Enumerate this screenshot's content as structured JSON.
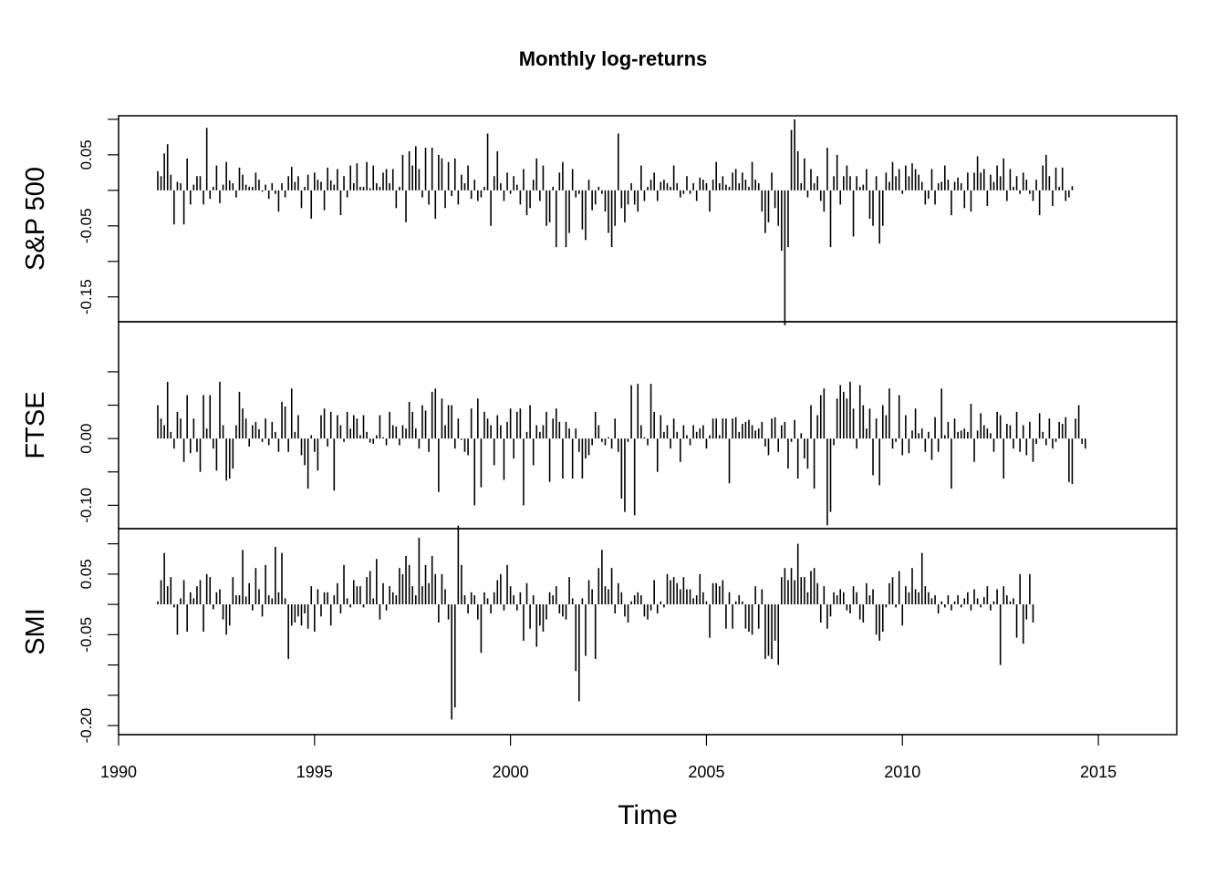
{
  "chart_data": {
    "type": "line",
    "style": "histogram-type vertical bars (type='h')",
    "title": "Monthly log-returns",
    "xlabel": "Time",
    "x_start": 1991.0,
    "frequency": 12,
    "xlim": [
      1990,
      2017
    ],
    "x_ticks": [
      1990,
      1995,
      2000,
      2005,
      2010,
      2015
    ],
    "x_tick_labels": [
      "1990",
      "1995",
      "2000",
      "2005",
      "2010",
      "2015"
    ],
    "panels": [
      {
        "name": "S&P 500",
        "ylim": [
          -0.185,
          0.105
        ],
        "y_ticks": [
          0.1,
          0.05,
          0.0,
          -0.05,
          -0.1,
          -0.15,
          -0.2
        ],
        "y_tick_labels": [
          {
            "at": 0.05,
            "text": "0.05"
          },
          {
            "at": -0.05,
            "text": "-0.05"
          },
          {
            "at": -0.15,
            "text": "-0.15"
          }
        ],
        "values": [
          0.027,
          0.02,
          0.052,
          0.065,
          0.022,
          -0.048,
          0.012,
          0.01,
          -0.048,
          0.045,
          -0.02,
          0.008,
          0.02,
          0.02,
          -0.02,
          0.088,
          -0.012,
          0.005,
          0.035,
          -0.018,
          0.008,
          0.04,
          0.014,
          0.01,
          -0.01,
          0.032,
          0.022,
          0.008,
          0.005,
          0.005,
          0.025,
          0.015,
          -0.002,
          0.008,
          -0.012,
          0.01,
          -0.005,
          -0.03,
          0.01,
          -0.01,
          0.02,
          0.033,
          0.012,
          0.02,
          -0.025,
          0.005,
          0.022,
          -0.04,
          0.025,
          0.015,
          0.012,
          -0.028,
          0.032,
          0.014,
          0.008,
          0.03,
          -0.035,
          0.02,
          -0.01,
          0.035,
          0.01,
          0.038,
          0.005,
          0.005,
          0.04,
          0.003,
          0.035,
          0.01,
          0.005,
          0.025,
          0.03,
          0.01,
          0.03,
          -0.025,
          0.005,
          0.05,
          -0.045,
          0.055,
          0.035,
          0.062,
          0.03,
          -0.01,
          0.06,
          -0.02,
          0.06,
          -0.04,
          0.05,
          0.045,
          -0.025,
          0.04,
          -0.008,
          0.045,
          -0.02,
          0.022,
          0.01,
          0.035,
          -0.012,
          0.015,
          -0.015,
          -0.01,
          0.005,
          0.08,
          -0.05,
          0.02,
          0.055,
          0.01,
          -0.015,
          0.025,
          -0.005,
          0.02,
          0.008,
          -0.02,
          0.03,
          -0.035,
          -0.025,
          0.015,
          0.045,
          -0.015,
          0.035,
          -0.05,
          -0.045,
          0.005,
          -0.08,
          0.025,
          0.04,
          -0.08,
          -0.06,
          0.03,
          -0.01,
          -0.005,
          -0.055,
          -0.07,
          0.015,
          -0.028,
          -0.02,
          0.005,
          -0.005,
          -0.03,
          -0.06,
          -0.08,
          -0.05,
          0.08,
          -0.025,
          -0.045,
          -0.02,
          0.01,
          -0.02,
          -0.03,
          0.035,
          -0.015,
          0.005,
          0.015,
          0.025,
          -0.015,
          0.012,
          0.015,
          0.01,
          0.005,
          0.035,
          0.01,
          -0.01,
          -0.005,
          0.02,
          -0.005,
          0.01,
          -0.015,
          0.018,
          0.015,
          0.01,
          -0.03,
          0.015,
          0.04,
          0.01,
          0.02,
          0.008,
          0.005,
          0.025,
          0.03,
          0.01,
          0.025,
          0.015,
          0.005,
          0.04,
          0.015,
          0.01,
          -0.03,
          -0.06,
          -0.045,
          0.025,
          -0.025,
          -0.05,
          -0.085,
          -0.19,
          -0.08,
          0.085,
          0.1,
          0.055,
          0.01,
          0.045,
          -0.01,
          0.03,
          0.01,
          0.02,
          -0.015,
          -0.03,
          0.06,
          -0.08,
          0.02,
          0.05,
          -0.02,
          0.02,
          0.035,
          0.02,
          -0.065,
          0.02,
          0.005,
          0.008,
          0.03,
          -0.04,
          -0.05,
          0.02,
          -0.075,
          -0.05,
          0.025,
          0.012,
          0.04,
          0.02,
          0.03,
          -0.005,
          0.035,
          0.02,
          0.038,
          0.03,
          0.022,
          0.012,
          -0.02,
          -0.012,
          0.03,
          -0.02,
          0.01,
          0.012,
          0.035,
          0.015,
          -0.035,
          0.012,
          0.018,
          0.01,
          -0.025,
          0.025,
          -0.03,
          0.025,
          0.048,
          0.025,
          0.03,
          -0.022,
          0.022,
          0.012,
          0.035,
          0.02,
          0.045,
          -0.015,
          0.03,
          0.005,
          0.02,
          -0.005,
          0.025,
          0.015,
          -0.005,
          -0.015,
          0.015,
          -0.035,
          0.035,
          0.05,
          0.02,
          -0.022,
          0.032,
          0.005,
          0.032,
          -0.015,
          -0.01,
          0.006
        ],
        "series_color": "#000000"
      },
      {
        "name": "FTSE",
        "ylim": [
          -0.135,
          0.175
        ],
        "y_ticks": [
          0.1,
          0.05,
          0.0,
          -0.05,
          -0.1
        ],
        "y_tick_labels": [
          {
            "at": 0.0,
            "text": "0.00"
          },
          {
            "at": -0.1,
            "text": "-0.10"
          }
        ],
        "values": [
          0.05,
          0.03,
          0.02,
          0.085,
          0.01,
          -0.015,
          0.04,
          0.03,
          -0.035,
          0.065,
          -0.022,
          0.03,
          -0.02,
          -0.05,
          0.065,
          0.015,
          0.065,
          -0.015,
          -0.048,
          0.085,
          0.02,
          -0.063,
          -0.06,
          -0.045,
          0.02,
          0.07,
          0.045,
          0.03,
          -0.012,
          0.02,
          0.025,
          0.014,
          -0.005,
          0.03,
          -0.01,
          0.025,
          0.01,
          -0.02,
          0.055,
          0.048,
          -0.02,
          0.075,
          0.01,
          0.035,
          -0.025,
          -0.04,
          -0.075,
          0.005,
          -0.02,
          -0.048,
          0.035,
          0.045,
          -0.012,
          0.04,
          -0.078,
          0.035,
          0.02,
          -0.005,
          0.04,
          0.015,
          0.035,
          0.03,
          0.005,
          0.035,
          0.01,
          -0.006,
          -0.008,
          0.005,
          0.035,
          0.002,
          -0.01,
          0.04,
          0.02,
          0.018,
          -0.01,
          0.02,
          0.015,
          0.055,
          0.04,
          0.015,
          -0.015,
          0.05,
          0.042,
          -0.02,
          0.07,
          0.075,
          -0.08,
          0.06,
          0.02,
          0.05,
          0.05,
          -0.015,
          0.03,
          -0.002,
          -0.02,
          -0.025,
          0.045,
          -0.1,
          0.06,
          -0.073,
          0.04,
          0.03,
          0.02,
          -0.04,
          0.035,
          0.02,
          -0.062,
          0.025,
          0.045,
          -0.03,
          0.04,
          0.045,
          -0.1,
          0.01,
          0.05,
          -0.04,
          0.02,
          0.01,
          0.02,
          0.04,
          -0.065,
          0.03,
          0.045,
          0.025,
          -0.06,
          0.025,
          0.015,
          -0.06,
          0.015,
          -0.02,
          -0.06,
          -0.03,
          -0.025,
          -0.01,
          0.04,
          0.02,
          -0.005,
          -0.01,
          0.002,
          -0.015,
          0.03,
          -0.02,
          -0.09,
          -0.11,
          -0.005,
          0.08,
          -0.115,
          0.082,
          0.02,
          0.002,
          -0.01,
          0.082,
          0.04,
          -0.05,
          0.035,
          0.01,
          0.02,
          -0.015,
          0.03,
          0.01,
          -0.035,
          0.02,
          0.005,
          -0.01,
          0.02,
          0.01,
          0.015,
          0.02,
          -0.015,
          0.005,
          0.03,
          0.03,
          0.005,
          0.03,
          0.03,
          -0.067,
          0.03,
          0.032,
          0.01,
          0.022,
          0.025,
          0.028,
          0.02,
          0.012,
          0.015,
          0.025,
          -0.012,
          -0.025,
          0.03,
          0.032,
          -0.02,
          0.02,
          0.025,
          -0.045,
          -0.005,
          0.028,
          -0.06,
          0.008,
          -0.03,
          -0.045,
          0.05,
          -0.075,
          0.035,
          0.065,
          0.075,
          -0.13,
          -0.11,
          -0.01,
          0.06,
          0.08,
          0.07,
          0.06,
          0.085,
          0.045,
          -0.015,
          0.08,
          0.05,
          0.015,
          0.045,
          -0.055,
          0.03,
          -0.07,
          0.05,
          0.035,
          0.075,
          -0.015,
          -0.005,
          0.065,
          -0.025,
          0.035,
          -0.022,
          0.012,
          0.045,
          0.008,
          0.015,
          -0.02,
          0.01,
          -0.032,
          0.032,
          -0.02,
          0.075,
          0.005,
          0.025,
          -0.075,
          0.03,
          0.01,
          0.012,
          0.015,
          0.01,
          0.052,
          -0.035,
          0.012,
          0.038,
          0.02,
          0.015,
          0.008,
          -0.02,
          0.04,
          0.035,
          -0.06,
          0.022,
          0.02,
          -0.015,
          0.04,
          -0.02,
          0.02,
          -0.025,
          0.025,
          -0.035,
          -0.008,
          0.038,
          0.01,
          -0.01,
          0.03,
          -0.015,
          -0.005,
          0.025,
          0.022,
          0.032,
          -0.065,
          -0.068,
          0.03,
          0.05,
          -0.008,
          -0.015
        ],
        "series_color": "#000000"
      },
      {
        "name": "SMI",
        "ylim": [
          -0.215,
          0.125
        ],
        "y_ticks": [
          0.1,
          0.05,
          0.0,
          -0.05,
          -0.1,
          -0.15,
          -0.2
        ],
        "y_tick_labels": [
          {
            "at": 0.05,
            "text": "0.05"
          },
          {
            "at": -0.05,
            "text": "-0.05"
          },
          {
            "at": -0.2,
            "text": "-0.20"
          }
        ],
        "values": [
          0.005,
          0.04,
          0.085,
          0.03,
          0.045,
          -0.005,
          -0.05,
          0.01,
          0.04,
          -0.045,
          0.02,
          0.01,
          0.03,
          0.04,
          -0.045,
          0.05,
          0.045,
          -0.008,
          0.02,
          0.025,
          -0.025,
          -0.05,
          -0.035,
          0.045,
          0.015,
          0.015,
          0.09,
          0.013,
          0.035,
          -0.01,
          0.06,
          0.025,
          -0.02,
          0.065,
          0.015,
          0.01,
          0.095,
          0.02,
          0.085,
          0.01,
          -0.09,
          -0.035,
          -0.03,
          -0.02,
          -0.035,
          -0.015,
          -0.04,
          0.03,
          -0.045,
          0.025,
          -0.02,
          0.02,
          0.02,
          -0.035,
          0.015,
          0.035,
          -0.015,
          0.065,
          0.01,
          -0.005,
          0.04,
          0.03,
          0.03,
          -0.005,
          0.045,
          0.055,
          0.01,
          0.075,
          -0.025,
          0.035,
          -0.01,
          0.03,
          0.02,
          0.015,
          0.06,
          0.05,
          0.08,
          0.065,
          0.03,
          0.015,
          0.11,
          0.03,
          0.065,
          0.035,
          0.08,
          0.05,
          -0.03,
          0.05,
          0.025,
          -0.025,
          -0.19,
          -0.17,
          0.13,
          0.065,
          0.015,
          -0.015,
          0.02,
          0.015,
          -0.025,
          -0.08,
          0.02,
          0.01,
          -0.015,
          0.02,
          0.04,
          0.05,
          -0.01,
          0.065,
          0.03,
          0.015,
          -0.01,
          0.02,
          -0.06,
          0.035,
          -0.04,
          0.015,
          -0.07,
          -0.035,
          -0.045,
          -0.025,
          0.02,
          0.015,
          0.03,
          -0.015,
          -0.02,
          -0.025,
          0.045,
          0.01,
          -0.11,
          -0.16,
          0.01,
          -0.085,
          0.04,
          0.025,
          -0.09,
          0.06,
          0.09,
          0.03,
          0.025,
          0.06,
          -0.015,
          0.035,
          0.02,
          -0.02,
          -0.03,
          0.005,
          0.015,
          0.02,
          0.015,
          -0.02,
          -0.025,
          -0.01,
          0.04,
          -0.015,
          0.005,
          -0.005,
          0.05,
          0.04,
          0.045,
          0.035,
          0.025,
          0.045,
          0.025,
          0.025,
          0.01,
          0.015,
          0.05,
          0.02,
          0.005,
          -0.055,
          0.035,
          0.035,
          0.03,
          0.04,
          -0.04,
          0.02,
          -0.04,
          0.005,
          0.015,
          0.005,
          -0.04,
          -0.045,
          -0.05,
          0.03,
          -0.04,
          0.025,
          -0.09,
          -0.085,
          -0.09,
          -0.06,
          -0.1,
          0.045,
          0.06,
          0.04,
          0.06,
          0.04,
          0.1,
          0.045,
          0.045,
          0.02,
          0.055,
          0.06,
          0.035,
          -0.03,
          0.03,
          -0.04,
          -0.02,
          0.02,
          0.015,
          0.025,
          0.02,
          -0.01,
          -0.015,
          0.03,
          0.02,
          -0.025,
          -0.03,
          0.035,
          0.015,
          0.025,
          -0.05,
          -0.06,
          -0.045,
          -0.005,
          0.035,
          0.045,
          -0.005,
          0.055,
          -0.035,
          0.03,
          0.02,
          0.06,
          0.025,
          0.02,
          0.085,
          0.03,
          0.02,
          0.01,
          0.015,
          -0.015,
          0.005,
          -0.005,
          0.015,
          -0.01,
          0.005,
          0.015,
          -0.005,
          0.01,
          0.02,
          -0.01,
          0.025,
          0.01,
          -0.005,
          0.012,
          0.03,
          -0.01,
          0.005,
          0.025,
          -0.1,
          0.03,
          0.015,
          0.005,
          0.01,
          -0.055,
          0.05,
          -0.065,
          -0.025,
          0.05,
          -0.03
        ],
        "series_color": "#000000"
      }
    ]
  }
}
